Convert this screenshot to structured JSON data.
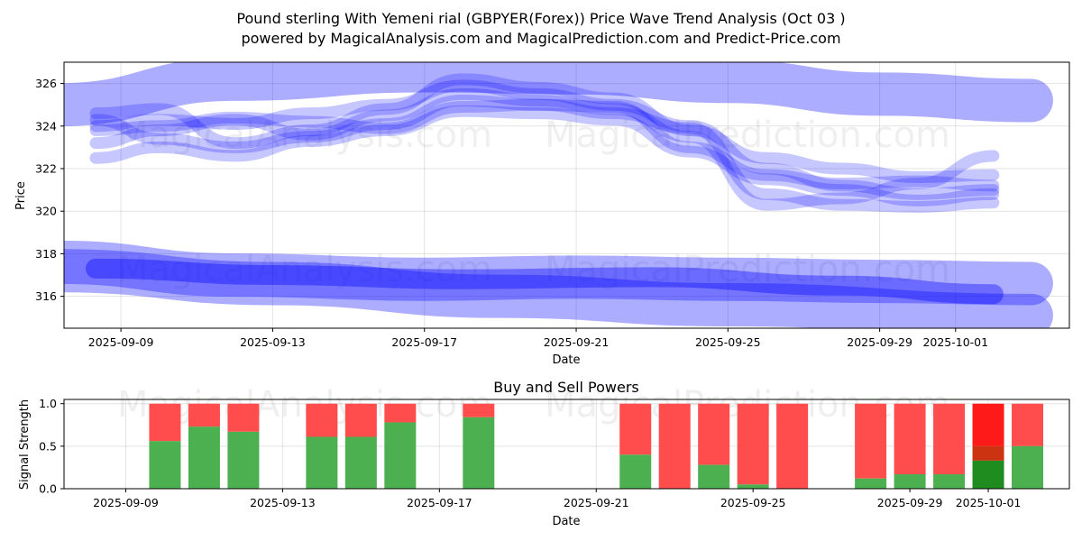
{
  "chart_data": [
    {
      "type": "line",
      "title": "Pound sterling With Yemeni rial (GBPYER(Forex)) Price Wave Trend Analysis (Oct 03 )",
      "subtitle": "powered by MagicalAnalysis.com and MagicalPrediction.com and Predict-Price.com",
      "xlabel": "Date",
      "ylabel": "Price",
      "x_range": [
        "2025-09-07 12:00",
        "2025-10-04 00:00"
      ],
      "ylim": [
        314.5,
        327.0
      ],
      "yticks": [
        316,
        318,
        320,
        322,
        324,
        326
      ],
      "xticks": [
        "2025-09-09",
        "2025-09-13",
        "2025-09-17",
        "2025-09-21",
        "2025-09-25",
        "2025-09-29",
        "2025-10-01"
      ],
      "grid": true,
      "watermarks": [
        "MagicalAnalysis.com",
        "MagicalPrediction.com"
      ],
      "color": "#0000ff",
      "series": [
        {
          "name": "wave-band-upper",
          "x": [
            "2025-09-07",
            "2025-09-12",
            "2025-09-17",
            "2025-09-21",
            "2025-09-25",
            "2025-09-29",
            "2025-10-03"
          ],
          "values": [
            325.0,
            326.2,
            326.6,
            326.5,
            326.1,
            325.5,
            325.2
          ],
          "width": "wide"
        },
        {
          "name": "wave-band-lower",
          "x": [
            "2025-09-07",
            "2025-09-12",
            "2025-09-17",
            "2025-09-21",
            "2025-09-25",
            "2025-09-29",
            "2025-10-03"
          ],
          "values": [
            317.6,
            317.0,
            316.8,
            316.9,
            316.8,
            316.7,
            316.6
          ],
          "width": "wide"
        },
        {
          "name": "wave-band-bottom",
          "x": [
            "2025-09-07",
            "2025-09-13",
            "2025-09-19",
            "2025-09-25",
            "2025-10-03"
          ],
          "values": [
            317.2,
            316.6,
            316.0,
            315.6,
            315.1
          ],
          "width": "wide"
        },
        {
          "name": "wave-lower-core",
          "x": [
            "2025-09-08",
            "2025-09-13",
            "2025-09-18",
            "2025-09-23",
            "2025-09-28",
            "2025-10-02"
          ],
          "values": [
            317.3,
            317.0,
            316.8,
            316.9,
            316.5,
            316.1
          ],
          "width": "medium"
        },
        {
          "name": "wave-1",
          "x": [
            "2025-09-08",
            "2025-09-10",
            "2025-09-12",
            "2025-09-14",
            "2025-09-16",
            "2025-09-18",
            "2025-09-20",
            "2025-09-22",
            "2025-09-24",
            "2025-09-26",
            "2025-09-28",
            "2025-09-30",
            "2025-10-02"
          ],
          "values": [
            324.0,
            324.3,
            324.1,
            324.6,
            325.0,
            325.9,
            325.5,
            325.0,
            324.0,
            322.0,
            321.2,
            320.8,
            321.0
          ],
          "width": "narrow"
        },
        {
          "name": "wave-2",
          "x": [
            "2025-09-08",
            "2025-09-10",
            "2025-09-12",
            "2025-09-14",
            "2025-09-16",
            "2025-09-18",
            "2025-09-20",
            "2025-09-22",
            "2025-09-24",
            "2025-09-26",
            "2025-09-28",
            "2025-09-30",
            "2025-10-02"
          ],
          "values": [
            323.2,
            323.8,
            324.3,
            323.6,
            324.5,
            325.5,
            325.2,
            324.8,
            323.5,
            320.3,
            320.6,
            321.3,
            322.6
          ],
          "width": "narrow"
        },
        {
          "name": "wave-3",
          "x": [
            "2025-09-08",
            "2025-09-10",
            "2025-09-12",
            "2025-09-14",
            "2025-09-16",
            "2025-09-18",
            "2025-09-20",
            "2025-09-22",
            "2025-09-24",
            "2025-09-26",
            "2025-09-28",
            "2025-09-30",
            "2025-10-02"
          ],
          "values": [
            322.5,
            323.0,
            322.6,
            323.3,
            323.8,
            324.7,
            324.6,
            324.3,
            322.8,
            321.5,
            321.0,
            320.5,
            320.8
          ],
          "width": "narrow"
        },
        {
          "name": "wave-4",
          "x": [
            "2025-09-08",
            "2025-09-10",
            "2025-09-12",
            "2025-09-14",
            "2025-09-16",
            "2025-09-18",
            "2025-09-20",
            "2025-09-22",
            "2025-09-24",
            "2025-09-26",
            "2025-09-28",
            "2025-09-30",
            "2025-10-02"
          ],
          "values": [
            324.6,
            324.8,
            323.2,
            323.8,
            324.8,
            326.2,
            325.8,
            325.3,
            323.8,
            322.5,
            322.0,
            321.6,
            321.7
          ],
          "width": "narrow"
        },
        {
          "name": "wave-5",
          "x": [
            "2025-09-08",
            "2025-09-10",
            "2025-09-12",
            "2025-09-14",
            "2025-09-16",
            "2025-09-18",
            "2025-09-20",
            "2025-09-22",
            "2025-09-24",
            "2025-09-26",
            "2025-09-28",
            "2025-09-30",
            "2025-10-02"
          ],
          "values": [
            323.8,
            324.0,
            324.4,
            324.2,
            323.9,
            324.9,
            325.0,
            324.6,
            323.9,
            320.8,
            320.3,
            320.2,
            320.4
          ],
          "width": "narrow"
        },
        {
          "name": "wave-6",
          "x": [
            "2025-09-08",
            "2025-09-10",
            "2025-09-12",
            "2025-09-14",
            "2025-09-16",
            "2025-09-18",
            "2025-09-20",
            "2025-09-22",
            "2025-09-24",
            "2025-09-26",
            "2025-09-28",
            "2025-09-30",
            "2025-10-02"
          ],
          "values": [
            324.3,
            323.4,
            323.0,
            323.5,
            324.1,
            325.2,
            325.0,
            324.9,
            323.0,
            321.7,
            321.3,
            321.4,
            321.2
          ],
          "width": "narrow"
        }
      ]
    },
    {
      "type": "bar",
      "title": "Buy and Sell Powers",
      "xlabel": "Date",
      "ylabel": "Signal Strength",
      "ylim": [
        0,
        1.05
      ],
      "yticks": [
        "0.0",
        "0.5",
        "1.0"
      ],
      "xticks": [
        "2025-09-09",
        "2025-09-13",
        "2025-09-17",
        "2025-09-21",
        "2025-09-25",
        "2025-09-29",
        "2025-10-01"
      ],
      "grid": true,
      "buy_color": "#4caf50",
      "sell_color": "#ff4c4c",
      "current_buy_color": "#1f8c1f",
      "current_sell_color": "#ff1a1a",
      "current_mid_color": "#cc3311",
      "series": [
        {
          "name": "Buy",
          "color": "#4caf50"
        },
        {
          "name": "Sell",
          "color": "#ff4c4c"
        }
      ],
      "bars": [
        {
          "date": "2025-09-10",
          "buy": 0.56
        },
        {
          "date": "2025-09-11",
          "buy": 0.73
        },
        {
          "date": "2025-09-12",
          "buy": 0.67
        },
        {
          "date": "2025-09-14",
          "buy": 0.61
        },
        {
          "date": "2025-09-15",
          "buy": 0.61
        },
        {
          "date": "2025-09-16",
          "buy": 0.78
        },
        {
          "date": "2025-09-18",
          "buy": 0.84
        },
        {
          "date": "2025-09-22",
          "buy": 0.4
        },
        {
          "date": "2025-09-23",
          "buy": 0.0
        },
        {
          "date": "2025-09-24",
          "buy": 0.28
        },
        {
          "date": "2025-09-25",
          "buy": 0.05
        },
        {
          "date": "2025-09-26",
          "buy": 0.0
        },
        {
          "date": "2025-09-28",
          "buy": 0.12
        },
        {
          "date": "2025-09-29",
          "buy": 0.17
        },
        {
          "date": "2025-09-30",
          "buy": 0.17
        },
        {
          "date": "2025-10-01",
          "buy": 0.33,
          "mid": 0.5,
          "current": true
        },
        {
          "date": "2025-10-02",
          "buy": 0.5
        }
      ]
    }
  ]
}
